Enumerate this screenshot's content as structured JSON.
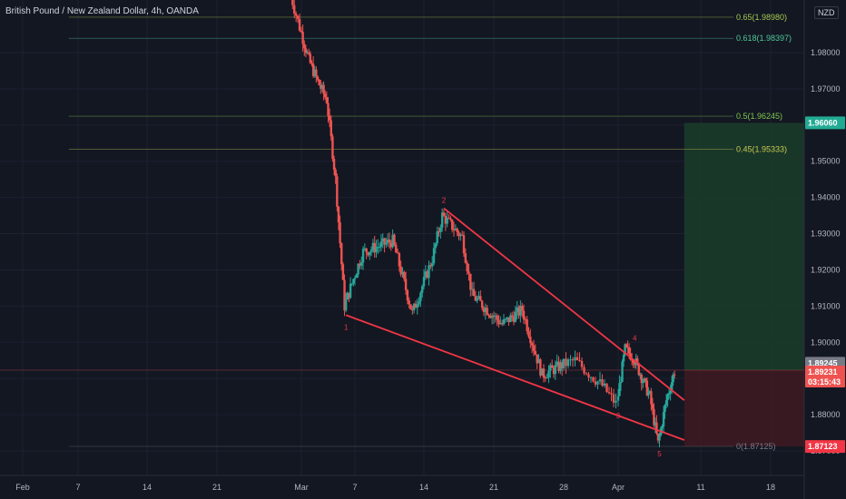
{
  "header": {
    "title": "British Pound / New Zealand Dollar, 4h, OANDA",
    "currency": "NZD"
  },
  "colors": {
    "background": "#131722",
    "up": "#26a69a",
    "down": "#ef5350",
    "wedge": "#f23645",
    "target_zone": "#1b3b2a",
    "stop_zone": "#3d1a22"
  },
  "chart_data": {
    "type": "candlestick",
    "symbol": "GBPNZD",
    "timeframe": "4h",
    "ylim": [
      1.867,
      1.998
    ],
    "x_ticks": [
      "Feb",
      "7",
      "14",
      "21",
      "Mar",
      "7",
      "14",
      "21",
      "28",
      "Apr",
      "11",
      "18"
    ],
    "y_ticks": [
      "1.98000",
      "1.97000",
      "1.96000",
      "1.95000",
      "1.94000",
      "1.93000",
      "1.92000",
      "1.91000",
      "1.90000",
      "1.89000",
      "1.88000",
      "1.87000"
    ],
    "price_path": [
      {
        "x": "Feb 28",
        "price": 1.9975
      },
      {
        "x": "Mar 1",
        "price": 1.987
      },
      {
        "x": "Mar 2",
        "price": 1.978
      },
      {
        "x": "Mar 3",
        "price": 1.972
      },
      {
        "x": "Mar 4",
        "price": 1.967
      },
      {
        "x": "Mar 5",
        "price": 1.945
      },
      {
        "x": "Mar 6",
        "price": 1.91
      },
      {
        "x": "Mar 8",
        "price": 1.925
      },
      {
        "x": "Mar 11",
        "price": 1.928
      },
      {
        "x": "Mar 13",
        "price": 1.908
      },
      {
        "x": "Mar 15",
        "price": 1.923
      },
      {
        "x": "Mar 16",
        "price": 1.935
      },
      {
        "x": "Mar 18",
        "price": 1.929
      },
      {
        "x": "Mar 19",
        "price": 1.913
      },
      {
        "x": "Mar 22",
        "price": 1.905
      },
      {
        "x": "Mar 24",
        "price": 1.909
      },
      {
        "x": "Mar 26",
        "price": 1.891
      },
      {
        "x": "Mar 29",
        "price": 1.895
      },
      {
        "x": "Mar 31",
        "price": 1.888
      },
      {
        "x": "Apr 1",
        "price": 1.883
      },
      {
        "x": "Apr 2",
        "price": 1.898
      },
      {
        "x": "Apr 3",
        "price": 1.896
      },
      {
        "x": "Apr 5",
        "price": 1.885
      },
      {
        "x": "Apr 6",
        "price": 1.872
      },
      {
        "x": "Apr 7",
        "price": 1.884
      },
      {
        "x": "Apr 8",
        "price": 1.892
      }
    ],
    "fib_levels": [
      {
        "label": "0.65(1.98980)",
        "price": 1.9898,
        "color": "#a5c84f"
      },
      {
        "label": "0.618(1.98397)",
        "price": 1.98397,
        "color": "#4fc89a"
      },
      {
        "label": "0.5(1.96245)",
        "price": 1.96245,
        "color": "#7fc84f"
      },
      {
        "label": "0.45(1.95333)",
        "price": 1.95333,
        "color": "#c8c84f"
      },
      {
        "label": "0(1.87125)",
        "price": 1.87125,
        "color": "#787b86"
      }
    ],
    "wave_labels": [
      {
        "label": "1",
        "x": "Mar 6",
        "price": 1.9065
      },
      {
        "label": "2",
        "x": "Mar 16",
        "price": 1.937
      },
      {
        "label": "3",
        "x": "Apr 1",
        "price": 1.882
      },
      {
        "label": "4",
        "x": "Apr 3",
        "price": 1.899
      },
      {
        "label": "5",
        "x": "Apr 6",
        "price": 1.8715
      }
    ],
    "wedge_lines": [
      {
        "from": {
          "x": "Mar 6",
          "price": 1.9075
        },
        "to": {
          "x": "Apr 9",
          "price": 1.873
        }
      },
      {
        "from": {
          "x": "Mar 16",
          "price": 1.937
        },
        "to": {
          "x": "Apr 9",
          "price": 1.884
        }
      }
    ],
    "position": {
      "entry": 1.8923,
      "target": 1.9606,
      "stop": 1.87123
    },
    "price_tags": [
      {
        "text": "1.96060",
        "price": 1.9606,
        "bg": "#22ab94",
        "fg": "#ffffff"
      },
      {
        "text": "1.89245",
        "price": 1.89245,
        "bg": "#787b86",
        "fg": "#ffffff"
      },
      {
        "text": "1.89231",
        "price": 1.89231,
        "bg": "#ef5350",
        "fg": "#ffffff",
        "sub": "03:15:43"
      },
      {
        "text": "1.87123",
        "price": 1.87123,
        "bg": "#f23645",
        "fg": "#ffffff"
      }
    ]
  }
}
